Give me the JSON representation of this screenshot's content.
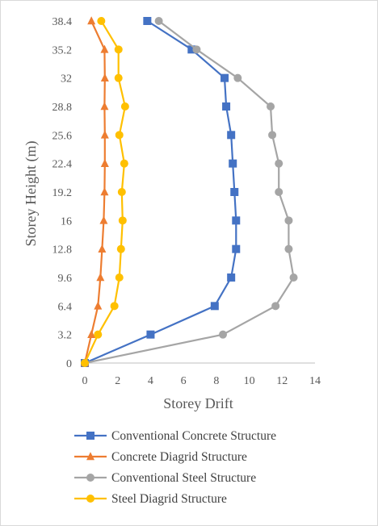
{
  "chart_data": {
    "type": "line",
    "xlabel": "Storey Drift",
    "ylabel": "Storey Height (m)",
    "xlim": [
      0,
      14
    ],
    "x_ticks": [
      "0",
      "2",
      "4",
      "6",
      "8",
      "10",
      "12",
      "14"
    ],
    "ylim": [
      0,
      38.4
    ],
    "y_ticks": [
      "0",
      "3.2",
      "6.4",
      "9.6",
      "12.8",
      "16",
      "19.2",
      "22.4",
      "25.6",
      "28.8",
      "32",
      "35.2",
      "38.4"
    ],
    "grid": false,
    "legend_position": "bottom",
    "series": [
      {
        "name": "Conventional Concrete Structure",
        "color": "#4472c4",
        "marker": "square",
        "x": [
          0,
          4.0,
          7.9,
          8.9,
          9.2,
          9.2,
          9.1,
          9.0,
          8.9,
          8.6,
          8.5,
          6.5,
          3.8
        ],
        "y": [
          0,
          3.2,
          6.4,
          9.6,
          12.8,
          16,
          19.2,
          22.4,
          25.6,
          28.8,
          32,
          35.2,
          38.4
        ]
      },
      {
        "name": "Concrete Diagrid Structure",
        "color": "#ed7d31",
        "marker": "triangle",
        "x": [
          0,
          0.4,
          0.8,
          0.95,
          1.05,
          1.15,
          1.2,
          1.22,
          1.22,
          1.2,
          1.22,
          1.2,
          0.4
        ],
        "y": [
          0,
          3.2,
          6.4,
          9.6,
          12.8,
          16,
          19.2,
          22.4,
          25.6,
          28.8,
          32,
          35.2,
          38.4
        ]
      },
      {
        "name": "Conventional Steel Structure",
        "color": "#a5a5a5",
        "marker": "circle",
        "x": [
          0,
          8.4,
          11.6,
          12.7,
          12.4,
          12.4,
          11.8,
          11.8,
          11.4,
          11.3,
          9.3,
          6.8,
          4.5
        ],
        "y": [
          0,
          3.2,
          6.4,
          9.6,
          12.8,
          16,
          19.2,
          22.4,
          25.6,
          28.8,
          32,
          35.2,
          38.4
        ]
      },
      {
        "name": "Steel Diagrid Structure",
        "color": "#ffc000",
        "marker": "circle",
        "x": [
          0,
          0.8,
          1.8,
          2.1,
          2.2,
          2.3,
          2.25,
          2.4,
          2.1,
          2.45,
          2.05,
          2.05,
          1.0
        ],
        "y": [
          0,
          3.2,
          6.4,
          9.6,
          12.8,
          16,
          19.2,
          22.4,
          25.6,
          28.8,
          32,
          35.2,
          38.4
        ]
      }
    ]
  }
}
